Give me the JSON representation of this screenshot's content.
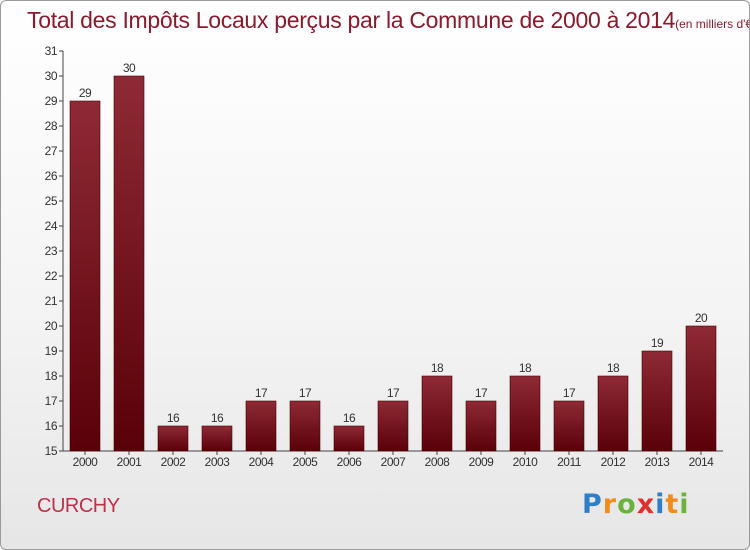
{
  "title": "Total des Impôts Locaux perçus par la Commune de 2000 à 2014",
  "title_unit": "(en milliers d'€)",
  "commune": "CURCHY",
  "logo": {
    "text": "Proxiti",
    "letters": [
      {
        "ch": "P",
        "color": "#2f7fc8"
      },
      {
        "ch": "r",
        "color": "#f28c1c"
      },
      {
        "ch": "o",
        "color": "#6cb33e"
      },
      {
        "ch": "x",
        "color": "#e0302c"
      },
      {
        "ch": "i",
        "color": "#2f7fc8"
      },
      {
        "ch": "t",
        "color": "#f28c1c"
      },
      {
        "ch": "i",
        "color": "#6cb33e"
      }
    ]
  },
  "chart_data": {
    "type": "bar",
    "title": "Total des Impôts Locaux perçus par la Commune de 2000 à 2014",
    "categories": [
      "2000",
      "2001",
      "2002",
      "2003",
      "2004",
      "2005",
      "2006",
      "2007",
      "2008",
      "2009",
      "2010",
      "2011",
      "2012",
      "2013",
      "2014"
    ],
    "values": [
      29,
      30,
      16,
      16,
      17,
      17,
      16,
      17,
      18,
      17,
      18,
      17,
      18,
      19,
      20
    ],
    "ylim": [
      15,
      31
    ],
    "yticks": [
      15,
      16,
      17,
      18,
      19,
      20,
      21,
      22,
      23,
      24,
      25,
      26,
      27,
      28,
      29,
      30,
      31
    ],
    "grid": false,
    "bar_color": "#7a1a22",
    "text_color": "#333333"
  }
}
